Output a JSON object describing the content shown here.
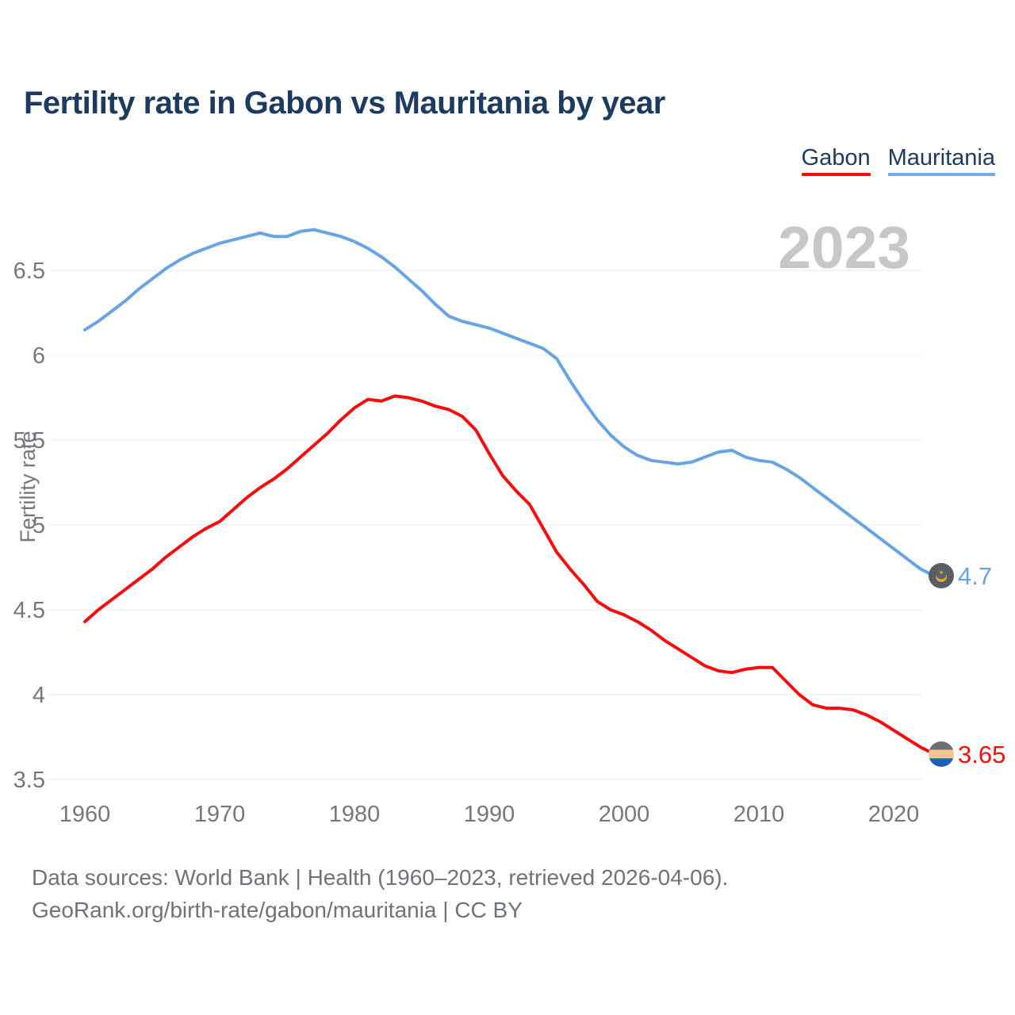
{
  "title": "Fertility rate in Gabon vs Mauritania by year",
  "watermark": "2023",
  "legend": {
    "items": [
      {
        "label": "Gabon",
        "color": "#f70d0d"
      },
      {
        "label": "Mauritania",
        "color": "#74abe8"
      }
    ]
  },
  "footer": {
    "line1": "Data sources: World Bank | Health (1960–2023, retrieved 2026-04-06).",
    "line2": "GeoRank.org/birth-rate/gabon/mauritania | CC BY"
  },
  "chart_data": {
    "type": "line",
    "title": "Fertility rate in Gabon vs Mauritania by year",
    "xlabel": "",
    "ylabel": "Fertility rate",
    "xlim": [
      1960,
      2023
    ],
    "ylim": [
      3.3,
      6.9
    ],
    "x_ticks": [
      1960,
      1970,
      1980,
      1990,
      2000,
      2010,
      2020
    ],
    "y_ticks": [
      "6.5",
      "6",
      "5.5",
      "5",
      "4.5",
      "4",
      "3.5"
    ],
    "grid": "horizontal",
    "legend_position": "top-right",
    "years": [
      1960,
      1961,
      1962,
      1963,
      1964,
      1965,
      1966,
      1967,
      1968,
      1969,
      1970,
      1971,
      1972,
      1973,
      1974,
      1975,
      1976,
      1977,
      1978,
      1979,
      1980,
      1981,
      1982,
      1983,
      1984,
      1985,
      1986,
      1987,
      1988,
      1989,
      1990,
      1991,
      1992,
      1993,
      1994,
      1995,
      1996,
      1997,
      1998,
      1999,
      2000,
      2001,
      2002,
      2003,
      2004,
      2005,
      2006,
      2007,
      2008,
      2009,
      2010,
      2011,
      2012,
      2013,
      2014,
      2015,
      2016,
      2017,
      2018,
      2019,
      2020,
      2021,
      2022,
      2023
    ],
    "series": [
      {
        "name": "Gabon",
        "color": "#f70d0d",
        "end_label": "3.65",
        "end_value": 3.65,
        "values": [
          4.43,
          4.5,
          4.56,
          4.62,
          4.68,
          4.74,
          4.81,
          4.87,
          4.93,
          4.98,
          5.02,
          5.09,
          5.16,
          5.22,
          5.27,
          5.33,
          5.4,
          5.47,
          5.54,
          5.62,
          5.69,
          5.74,
          5.73,
          5.76,
          5.75,
          5.73,
          5.7,
          5.68,
          5.64,
          5.56,
          5.42,
          5.29,
          5.2,
          5.12,
          4.98,
          4.84,
          4.74,
          4.65,
          4.55,
          4.5,
          4.47,
          4.43,
          4.38,
          4.32,
          4.27,
          4.22,
          4.17,
          4.14,
          4.13,
          4.15,
          4.16,
          4.16,
          4.08,
          4.0,
          3.94,
          3.92,
          3.92,
          3.91,
          3.88,
          3.84,
          3.79,
          3.74,
          3.69,
          3.65
        ]
      },
      {
        "name": "Mauritania",
        "color": "#68a4e4",
        "end_label": "4.7",
        "end_value": 4.7,
        "values": [
          6.15,
          6.2,
          6.26,
          6.32,
          6.39,
          6.45,
          6.51,
          6.56,
          6.6,
          6.63,
          6.66,
          6.68,
          6.7,
          6.72,
          6.7,
          6.7,
          6.73,
          6.74,
          6.72,
          6.7,
          6.67,
          6.63,
          6.58,
          6.52,
          6.45,
          6.38,
          6.3,
          6.23,
          6.2,
          6.18,
          6.16,
          6.13,
          6.1,
          6.07,
          6.04,
          5.98,
          5.85,
          5.73,
          5.62,
          5.53,
          5.46,
          5.41,
          5.38,
          5.37,
          5.36,
          5.37,
          5.4,
          5.43,
          5.44,
          5.4,
          5.38,
          5.37,
          5.33,
          5.28,
          5.22,
          5.16,
          5.1,
          5.04,
          4.98,
          4.92,
          4.86,
          4.8,
          4.74,
          4.7
        ]
      }
    ]
  }
}
